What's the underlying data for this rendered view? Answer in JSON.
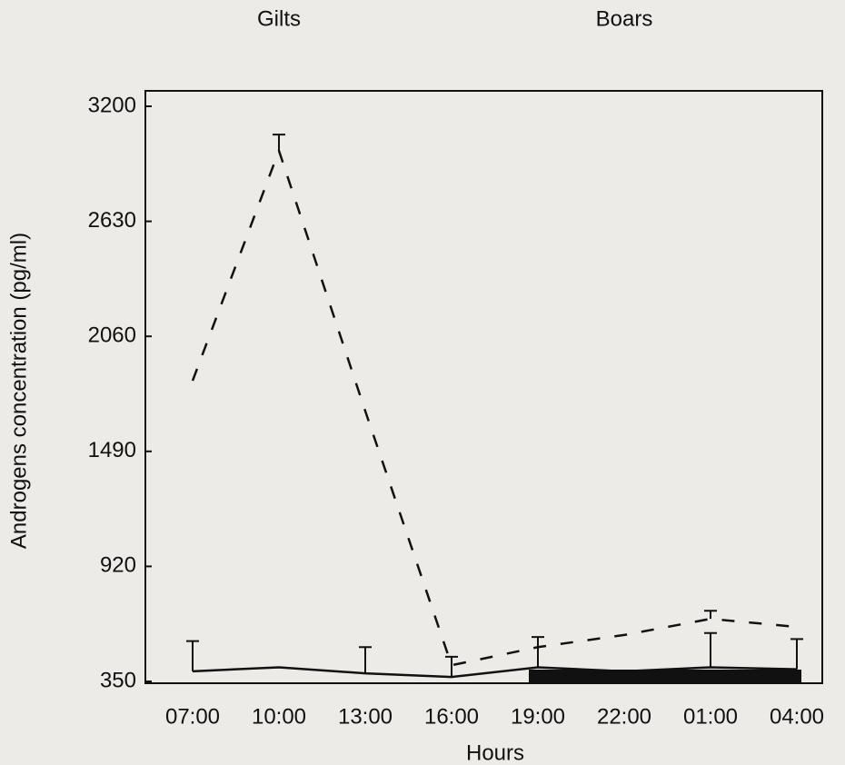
{
  "chart_data": {
    "type": "line",
    "x_label": "Hours",
    "y_label": "Androgens concentration (pg/ml)",
    "categories": [
      "07:00",
      "10:00",
      "13:00",
      "16:00",
      "19:00",
      "22:00",
      "01:00",
      "04:00"
    ],
    "series": [
      {
        "name": "Gilts",
        "color": "#111111",
        "dash": true,
        "values": [
          1840,
          2980,
          1690,
          430,
          520,
          580,
          660,
          620
        ],
        "errors": [
          null,
          80,
          null,
          null,
          null,
          null,
          40,
          null
        ]
      },
      {
        "name": "Boars",
        "color": "#111111",
        "dash": false,
        "values": [
          400,
          420,
          390,
          372,
          420,
          400,
          420,
          410
        ],
        "errors": [
          150,
          null,
          130,
          100,
          150,
          null,
          170,
          150
        ]
      }
    ],
    "ylim": [
      350,
      3200
    ],
    "yticks": [
      350,
      920,
      1490,
      2060,
      2630,
      3200
    ],
    "grid": false
  }
}
